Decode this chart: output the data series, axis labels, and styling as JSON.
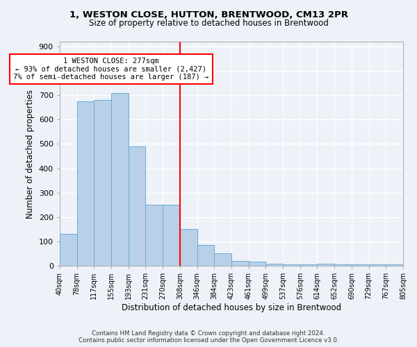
{
  "title1": "1, WESTON CLOSE, HUTTON, BRENTWOOD, CM13 2PR",
  "title2": "Size of property relative to detached houses in Brentwood",
  "xlabel": "Distribution of detached houses by size in Brentwood",
  "ylabel": "Number of detached properties",
  "bar_values": [
    130,
    675,
    680,
    710,
    490,
    250,
    250,
    150,
    85,
    50,
    20,
    17,
    10,
    5,
    5,
    8,
    5,
    5,
    5,
    5
  ],
  "bin_labels": [
    "40sqm",
    "78sqm",
    "117sqm",
    "155sqm",
    "193sqm",
    "231sqm",
    "270sqm",
    "308sqm",
    "346sqm",
    "384sqm",
    "423sqm",
    "461sqm",
    "499sqm",
    "537sqm",
    "576sqm",
    "614sqm",
    "652sqm",
    "690sqm",
    "729sqm",
    "767sqm",
    "805sqm"
  ],
  "bar_color": "#b8d0e8",
  "bar_edge_color": "#6aaad4",
  "vline_x_bar": 7,
  "annotation_text": "1 WESTON CLOSE: 277sqm\n← 93% of detached houses are smaller (2,427)\n7% of semi-detached houses are larger (187) →",
  "annotation_box_color": "white",
  "annotation_box_edge": "red",
  "vline_color": "red",
  "footer1": "Contains HM Land Registry data © Crown copyright and database right 2024.",
  "footer2": "Contains public sector information licensed under the Open Government Licence v3.0.",
  "ylim": [
    0,
    920
  ],
  "yticks": [
    0,
    100,
    200,
    300,
    400,
    500,
    600,
    700,
    800,
    900
  ],
  "background_color": "#eef2f8"
}
